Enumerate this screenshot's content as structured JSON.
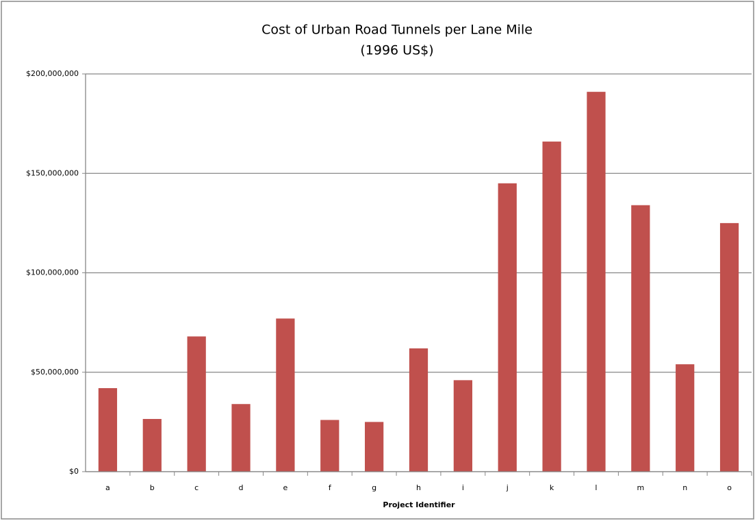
{
  "chart_data": {
    "type": "bar",
    "title": "Cost of Urban Road Tunnels per Lane Mile",
    "subtitle": "(1996 US$)",
    "x_label": "Project Identifier",
    "categories": [
      "a",
      "b",
      "c",
      "d",
      "e",
      "f",
      "g",
      "h",
      "i",
      "j",
      "k",
      "l",
      "m",
      "n",
      "o"
    ],
    "values": [
      42000000,
      26500000,
      68000000,
      34000000,
      77000000,
      26000000,
      25000000,
      62000000,
      46000000,
      145000000,
      166000000,
      191000000,
      134000000,
      54000000,
      125000000
    ],
    "color": "#c0504d",
    "ylim": [
      0,
      200000000
    ],
    "yticks": [
      {
        "value": 0,
        "label": "$0"
      },
      {
        "value": 50000000,
        "label": "$50,000,000"
      },
      {
        "value": 100000000,
        "label": "$100,000,000"
      },
      {
        "value": 150000000,
        "label": "$150,000,000"
      },
      {
        "value": 200000000,
        "label": "$200,000,000"
      }
    ],
    "grid": true
  }
}
